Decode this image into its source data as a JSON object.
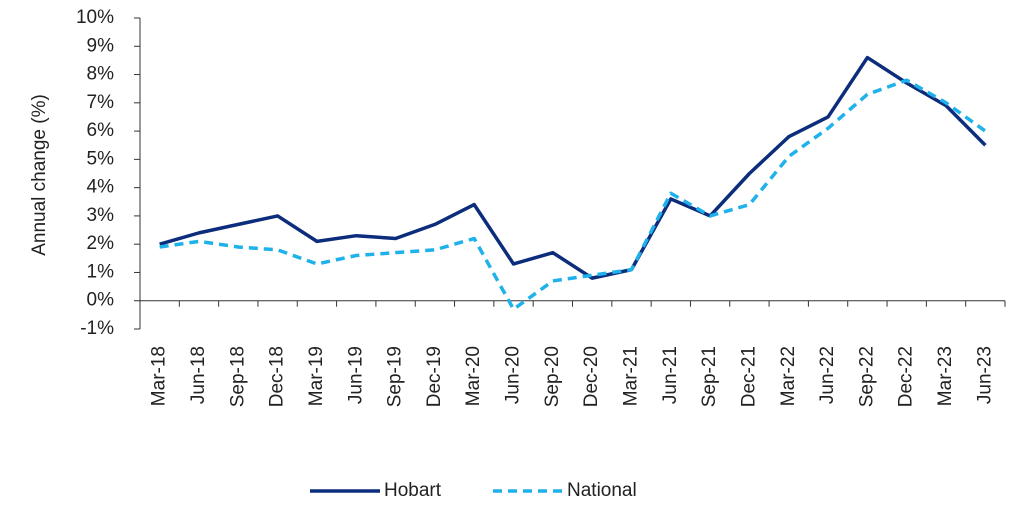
{
  "chart_data": {
    "type": "line",
    "y_label": "Annual change (%)",
    "categories": [
      "Mar-18",
      "Jun-18",
      "Sep-18",
      "Dec-18",
      "Mar-19",
      "Jun-19",
      "Sep-19",
      "Dec-19",
      "Mar-20",
      "Jun-20",
      "Sep-20",
      "Dec-20",
      "Mar-21",
      "Jun-21",
      "Sep-21",
      "Dec-21",
      "Mar-22",
      "Jun-22",
      "Sep-22",
      "Dec-22",
      "Mar-23",
      "Jun-23"
    ],
    "series": [
      {
        "name": "Hobart",
        "color": "#0c2d7c",
        "dashed": false,
        "values": [
          2.0,
          2.4,
          2.7,
          3.0,
          2.1,
          2.3,
          2.2,
          2.7,
          3.4,
          1.3,
          1.7,
          0.8,
          1.1,
          3.6,
          3.0,
          4.5,
          5.8,
          6.5,
          8.6,
          7.7,
          6.9,
          5.5
        ]
      },
      {
        "name": "National",
        "color": "#1eb1ea",
        "dashed": true,
        "values": [
          1.9,
          2.1,
          1.9,
          1.8,
          1.3,
          1.6,
          1.7,
          1.8,
          2.2,
          -0.3,
          0.7,
          0.9,
          1.1,
          3.8,
          3.0,
          3.4,
          5.1,
          6.1,
          7.3,
          7.8,
          7.0,
          6.0
        ]
      }
    ],
    "ylim": [
      -1,
      10
    ],
    "yticks": [
      {
        "value": -1,
        "label": "-1%"
      },
      {
        "value": 0,
        "label": "0%"
      },
      {
        "value": 1,
        "label": "1%"
      },
      {
        "value": 2,
        "label": "2%"
      },
      {
        "value": 3,
        "label": "3%"
      },
      {
        "value": 4,
        "label": "4%"
      },
      {
        "value": 5,
        "label": "5%"
      },
      {
        "value": 6,
        "label": "6%"
      },
      {
        "value": 7,
        "label": "7%"
      },
      {
        "value": 8,
        "label": "8%"
      },
      {
        "value": 9,
        "label": "9%"
      },
      {
        "value": 10,
        "label": "10%"
      }
    ],
    "legend": "bottom"
  }
}
